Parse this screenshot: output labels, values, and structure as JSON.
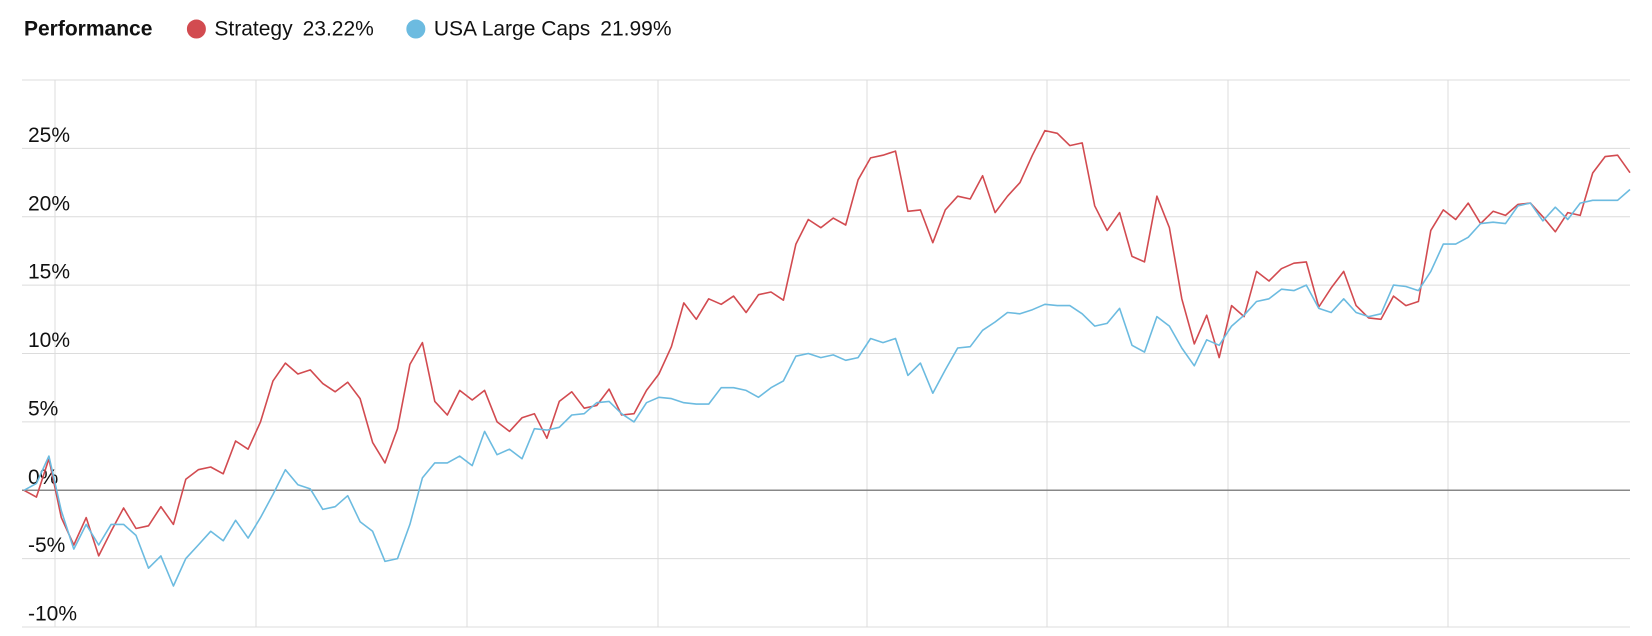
{
  "chart_data": {
    "type": "line",
    "title": "Performance",
    "ylim": [
      -10,
      30
    ],
    "yticks": [
      {
        "value": -10,
        "label": "-10%"
      },
      {
        "value": -5,
        "label": "-5%"
      },
      {
        "value": 0,
        "label": "0%"
      },
      {
        "value": 5,
        "label": "5%"
      },
      {
        "value": 10,
        "label": "10%"
      },
      {
        "value": 15,
        "label": "15%"
      },
      {
        "value": 20,
        "label": "20%"
      },
      {
        "value": 25,
        "label": "25%"
      }
    ],
    "grid": true,
    "series": [
      {
        "name": "Strategy",
        "legend_label": "23.22%",
        "color": "#d24b50",
        "values": [
          0,
          -0.5,
          2.3,
          -2,
          -4,
          -2,
          -4.8,
          -3,
          -1.3,
          -2.8,
          -2.6,
          -1.2,
          -2.5,
          0.8,
          1.5,
          1.7,
          1.2,
          3.6,
          3,
          5,
          8,
          9.3,
          8.5,
          8.8,
          7.8,
          7.2,
          7.9,
          6.7,
          3.5,
          2,
          4.5,
          9.2,
          10.8,
          6.5,
          5.5,
          7.3,
          6.6,
          7.3,
          5,
          4.3,
          5.3,
          5.6,
          3.8,
          6.5,
          7.2,
          6,
          6.2,
          7.4,
          5.5,
          5.6,
          7.3,
          8.5,
          10.5,
          13.7,
          12.5,
          14,
          13.6,
          14.2,
          13,
          14.3,
          14.5,
          13.9,
          18,
          19.8,
          19.2,
          19.9,
          19.4,
          22.7,
          24.3,
          24.5,
          24.8,
          20.4,
          20.5,
          18.1,
          20.5,
          21.5,
          21.3,
          23,
          20.3,
          21.5,
          22.5,
          24.5,
          26.3,
          26.1,
          25.2,
          25.4,
          20.8,
          19,
          20.3,
          17.1,
          16.7,
          21.5,
          19.2,
          14,
          10.7,
          12.8,
          9.7,
          13.5,
          12.7,
          16,
          15.3,
          16.2,
          16.6,
          16.7,
          13.4,
          14.8,
          16,
          13.5,
          12.6,
          12.5,
          14.2,
          13.5,
          13.8,
          19,
          20.5,
          19.8,
          21,
          19.5,
          20.4,
          20.1,
          20.9,
          21,
          20,
          18.9,
          20.3,
          20.1,
          23.2,
          24.4,
          24.5,
          23.22
        ]
      },
      {
        "name": "USA Large Caps",
        "legend_label": "21.99%",
        "color": "#6cbbe0",
        "values": [
          0,
          0.5,
          2.5,
          -1.5,
          -4.3,
          -2.5,
          -4,
          -2.5,
          -2.5,
          -3.3,
          -5.7,
          -4.8,
          -7,
          -5,
          -4,
          -3,
          -3.7,
          -2.2,
          -3.5,
          -2,
          -0.3,
          1.5,
          0.4,
          0.1,
          -1.4,
          -1.2,
          -0.4,
          -2.3,
          -3,
          -5.2,
          -5,
          -2.5,
          0.9,
          2,
          2,
          2.5,
          1.8,
          4.3,
          2.6,
          3,
          2.3,
          4.5,
          4.4,
          4.6,
          5.5,
          5.6,
          6.4,
          6.5,
          5.6,
          5,
          6.4,
          6.8,
          6.7,
          6.4,
          6.3,
          6.3,
          7.5,
          7.5,
          7.3,
          6.8,
          7.5,
          8,
          9.8,
          10,
          9.7,
          9.9,
          9.5,
          9.7,
          11.1,
          10.8,
          11.1,
          8.4,
          9.3,
          7.1,
          8.8,
          10.4,
          10.5,
          11.7,
          12.3,
          13,
          12.9,
          13.2,
          13.6,
          13.5,
          13.5,
          12.9,
          12,
          12.2,
          13.3,
          10.6,
          10.1,
          12.7,
          12,
          10.4,
          9.1,
          11,
          10.6,
          12,
          12.8,
          13.8,
          14,
          14.7,
          14.6,
          15,
          13.3,
          13,
          14,
          13,
          12.7,
          12.9,
          15,
          14.9,
          14.6,
          16,
          18,
          18,
          18.5,
          19.5,
          19.6,
          19.5,
          20.8,
          21,
          19.7,
          20.7,
          19.8,
          21,
          21.2,
          21.2,
          21.2,
          21.99
        ]
      }
    ]
  }
}
